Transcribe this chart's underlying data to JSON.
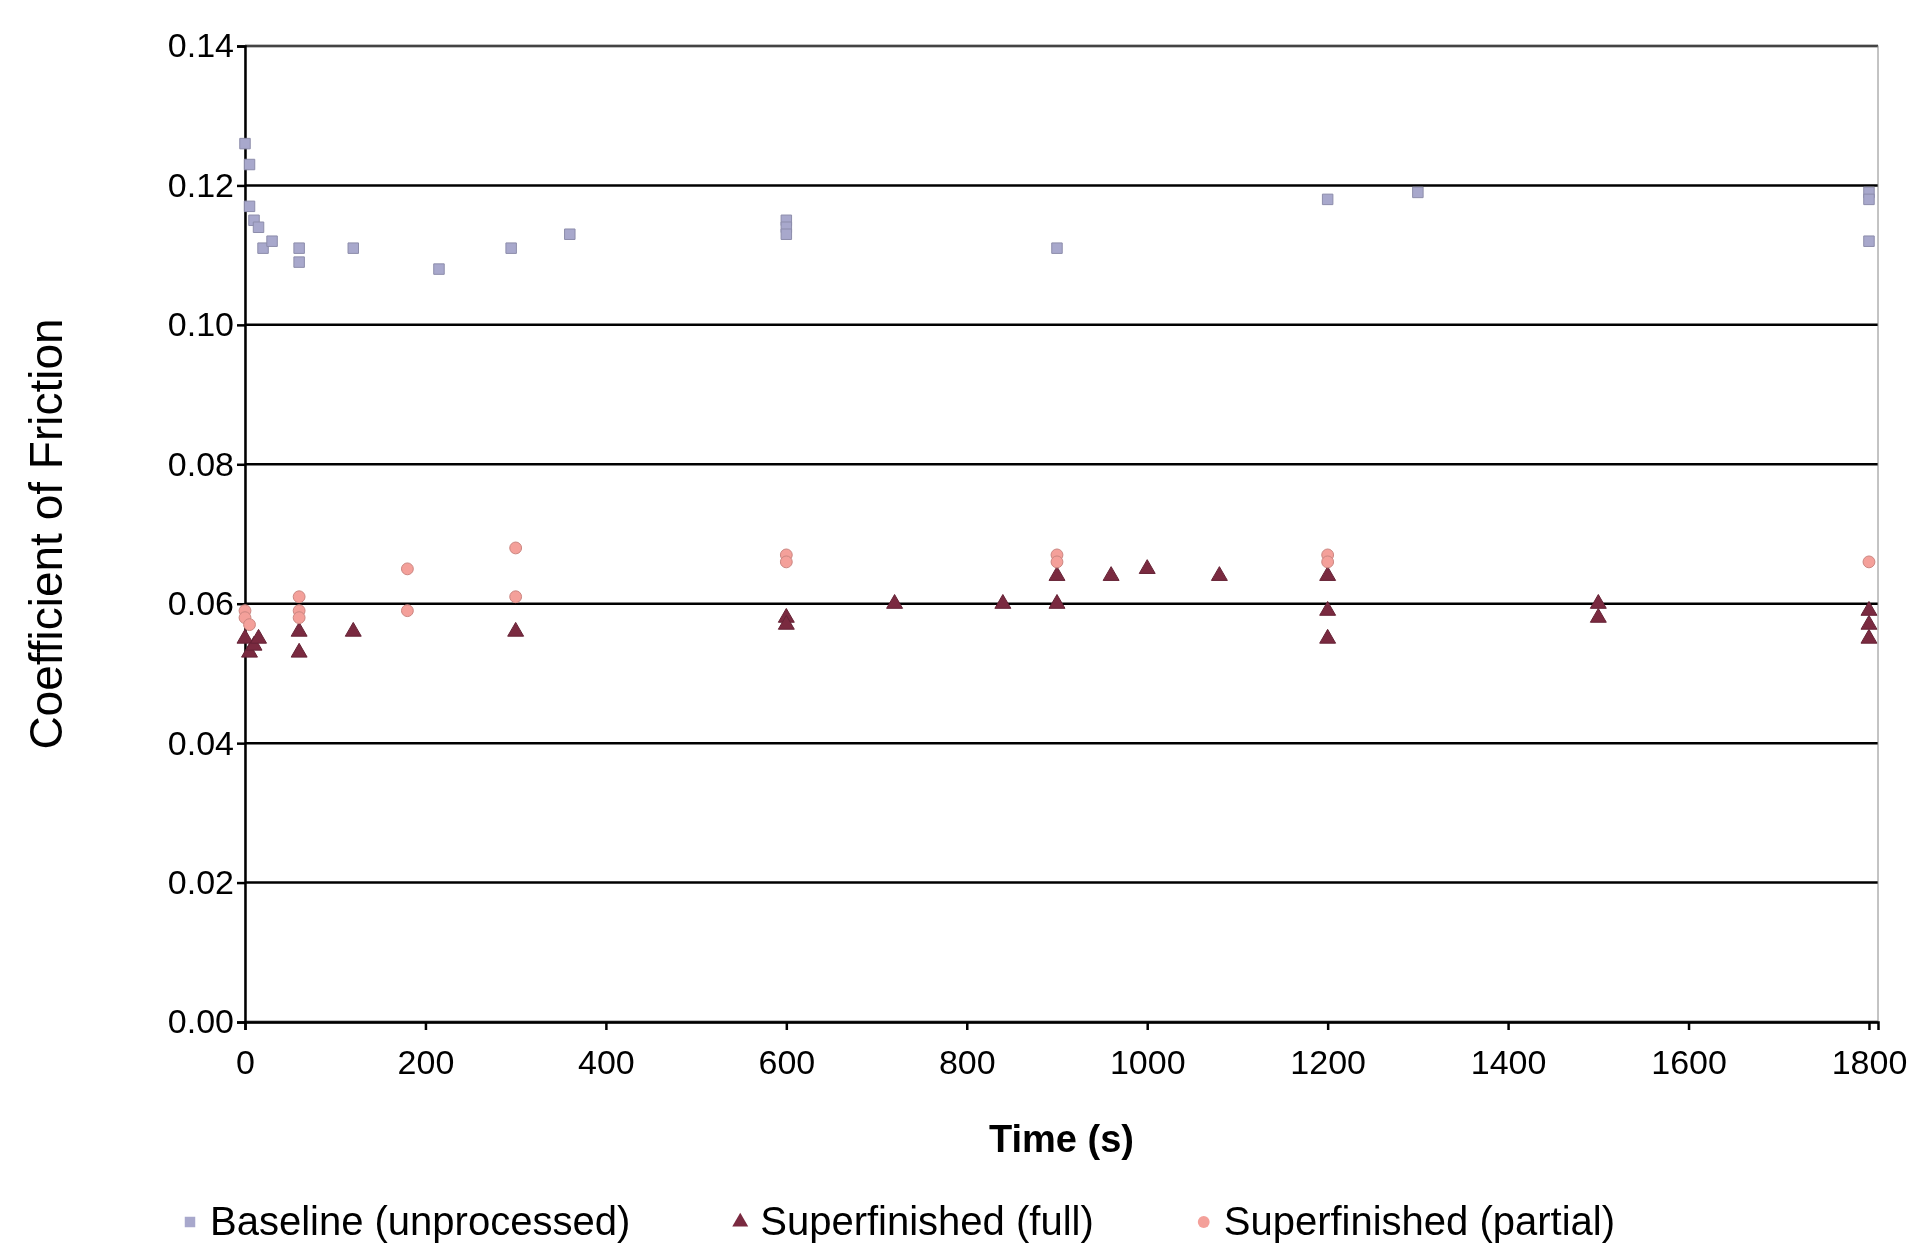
{
  "chart_data": {
    "type": "scatter",
    "xlabel": "Time (s)",
    "ylabel": "Coefficient of Friction",
    "xlim": [
      0,
      1810
    ],
    "xticks": [
      0,
      200,
      400,
      600,
      800,
      1000,
      1200,
      1400,
      1600,
      1800
    ],
    "ylim": [
      0,
      0.14
    ],
    "yticks": [
      {
        "value": 0,
        "label": "0.00"
      },
      {
        "value": 0.02,
        "label": "0.02"
      },
      {
        "value": 0.04,
        "label": "0.04"
      },
      {
        "value": 0.06,
        "label": "0.06"
      },
      {
        "value": 0.08,
        "label": "0.08"
      },
      {
        "value": 0.1,
        "label": "0.10"
      },
      {
        "value": 0.12,
        "label": "0.12"
      },
      {
        "value": 0.14,
        "label": "0.14"
      }
    ],
    "grid": "y",
    "legend": "bottom",
    "series": [
      {
        "name": "Baseline (unprocessed)",
        "color": "#a8a8cc",
        "marker": "square",
        "x": [
          0,
          5,
          5,
          10,
          15,
          20,
          30,
          60,
          60,
          120,
          215,
          295,
          360,
          600,
          600,
          600,
          900,
          1200,
          1300,
          1800,
          1800,
          1800
        ],
        "values": [
          0.126,
          0.123,
          0.117,
          0.115,
          0.114,
          0.111,
          0.112,
          0.111,
          0.109,
          0.111,
          0.108,
          0.111,
          0.113,
          0.115,
          0.114,
          0.113,
          0.111,
          0.118,
          0.119,
          0.119,
          0.118,
          0.112
        ]
      },
      {
        "name": "Superfinished (full)",
        "color": "#7a2a40",
        "marker": "triangle",
        "x": [
          0,
          5,
          10,
          15,
          60,
          60,
          120,
          300,
          600,
          600,
          720,
          840,
          900,
          900,
          960,
          1000,
          1080,
          1200,
          1200,
          1200,
          1500,
          1500,
          1800,
          1800,
          1800
        ],
        "values": [
          0.055,
          0.053,
          0.054,
          0.055,
          0.056,
          0.053,
          0.056,
          0.056,
          0.058,
          0.057,
          0.06,
          0.06,
          0.064,
          0.06,
          0.064,
          0.065,
          0.064,
          0.064,
          0.059,
          0.055,
          0.06,
          0.058,
          0.059,
          0.057,
          0.055
        ]
      },
      {
        "name": "Superfinished (partial)",
        "color": "#f4a09a",
        "marker": "circle",
        "x": [
          0,
          0,
          5,
          60,
          60,
          60,
          180,
          180,
          300,
          300,
          600,
          600,
          900,
          900,
          1200,
          1200,
          1800
        ],
        "values": [
          0.059,
          0.058,
          0.057,
          0.061,
          0.059,
          0.058,
          0.065,
          0.059,
          0.068,
          0.061,
          0.067,
          0.066,
          0.067,
          0.066,
          0.067,
          0.066,
          0.066
        ]
      }
    ]
  }
}
